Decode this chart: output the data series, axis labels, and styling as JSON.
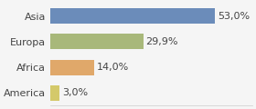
{
  "categories": [
    "America",
    "Africa",
    "Europa",
    "Asia"
  ],
  "values": [
    3.0,
    14.0,
    29.9,
    53.0
  ],
  "labels": [
    "3,0%",
    "14,0%",
    "29,9%",
    "53,0%"
  ],
  "bar_colors": [
    "#d4c96a",
    "#e0a86a",
    "#a8b87a",
    "#6b8cba"
  ],
  "background_color": "#f5f5f5",
  "xlim": [
    0,
    65
  ],
  "ylabel_fontsize": 8,
  "label_fontsize": 8
}
